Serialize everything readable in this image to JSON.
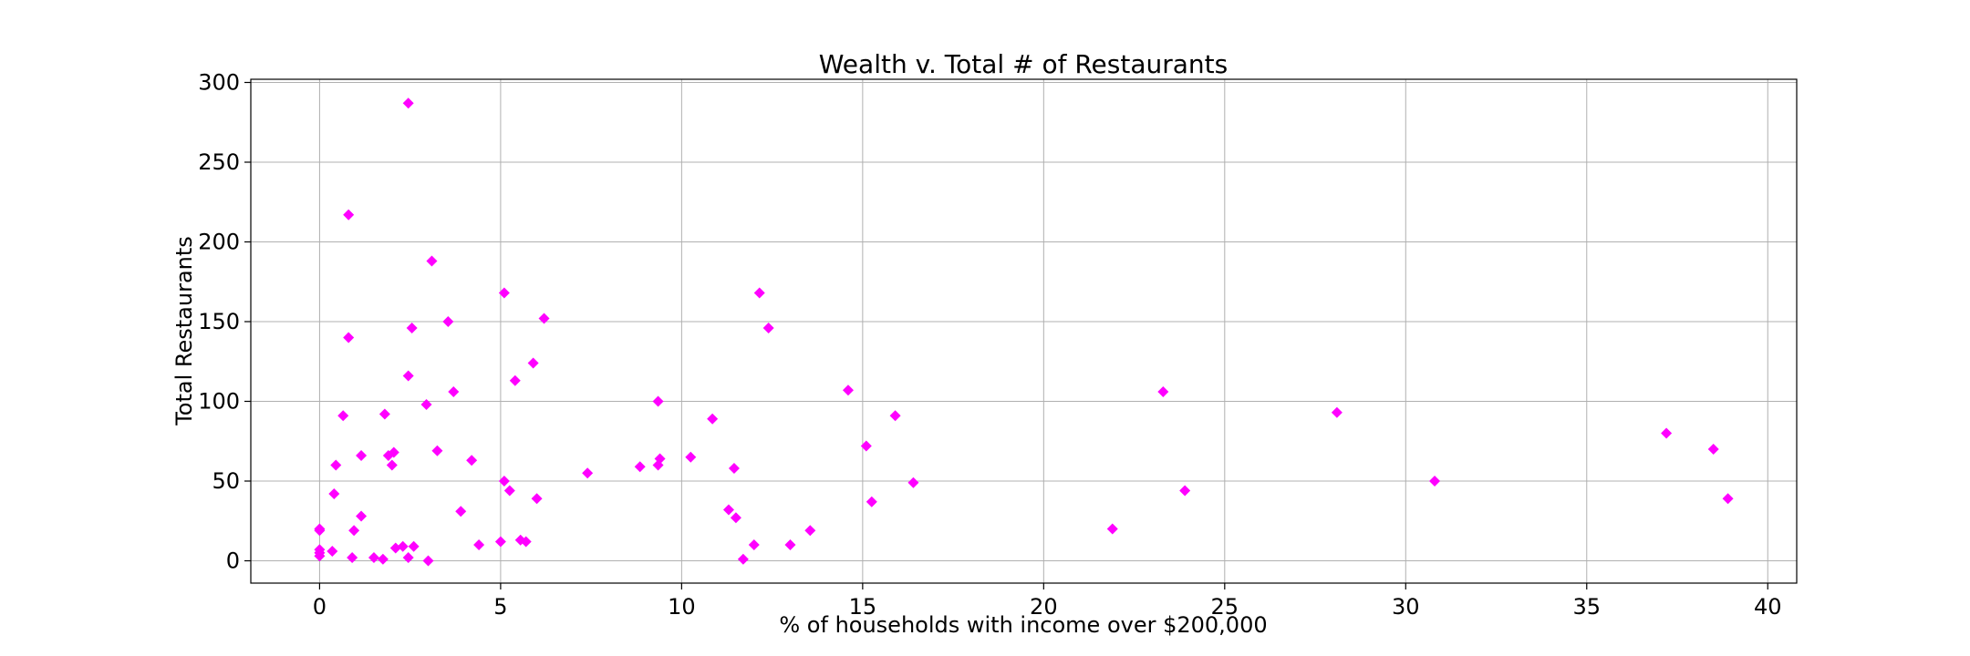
{
  "chart_data": {
    "type": "scatter",
    "title": "Wealth v. Total # of Restaurants",
    "xlabel": "% of households with income over $200,000",
    "ylabel": "Total Restaurants",
    "xlim": [
      -1.9,
      40.8
    ],
    "ylim": [
      -14,
      302
    ],
    "xticks": [
      0,
      5,
      10,
      15,
      20,
      25,
      30,
      35,
      40
    ],
    "yticks": [
      0,
      50,
      100,
      150,
      200,
      250,
      300
    ],
    "grid": true,
    "marker": "diamond",
    "color": "#ff00ff",
    "series": [
      {
        "points": [
          [
            0.0,
            20
          ],
          [
            0.0,
            19
          ],
          [
            0.0,
            7
          ],
          [
            0.0,
            5
          ],
          [
            0.0,
            3
          ],
          [
            0.35,
            6
          ],
          [
            0.4,
            42
          ],
          [
            0.45,
            60
          ],
          [
            0.65,
            91
          ],
          [
            0.8,
            217
          ],
          [
            0.8,
            140
          ],
          [
            0.9,
            2
          ],
          [
            0.95,
            19
          ],
          [
            1.15,
            66
          ],
          [
            1.15,
            28
          ],
          [
            1.5,
            2
          ],
          [
            1.75,
            1
          ],
          [
            1.8,
            92
          ],
          [
            1.9,
            66
          ],
          [
            2.0,
            60
          ],
          [
            2.05,
            68
          ],
          [
            2.1,
            8
          ],
          [
            2.3,
            9
          ],
          [
            2.45,
            287
          ],
          [
            2.45,
            116
          ],
          [
            2.45,
            2
          ],
          [
            2.55,
            146
          ],
          [
            2.6,
            9
          ],
          [
            2.95,
            98
          ],
          [
            3.0,
            0
          ],
          [
            3.1,
            188
          ],
          [
            3.25,
            69
          ],
          [
            3.55,
            150
          ],
          [
            3.7,
            106
          ],
          [
            3.9,
            31
          ],
          [
            4.2,
            63
          ],
          [
            4.4,
            10
          ],
          [
            5.0,
            12
          ],
          [
            5.1,
            168
          ],
          [
            5.1,
            50
          ],
          [
            5.25,
            44
          ],
          [
            5.4,
            113
          ],
          [
            5.55,
            13
          ],
          [
            5.7,
            12
          ],
          [
            5.9,
            124
          ],
          [
            6.0,
            39
          ],
          [
            6.2,
            152
          ],
          [
            7.4,
            55
          ],
          [
            8.85,
            59
          ],
          [
            9.35,
            100
          ],
          [
            9.35,
            60
          ],
          [
            9.4,
            64
          ],
          [
            10.25,
            65
          ],
          [
            10.85,
            89
          ],
          [
            11.3,
            32
          ],
          [
            11.45,
            58
          ],
          [
            11.5,
            27
          ],
          [
            11.7,
            1
          ],
          [
            12.0,
            10
          ],
          [
            12.15,
            168
          ],
          [
            12.4,
            146
          ],
          [
            13.0,
            10
          ],
          [
            13.55,
            19
          ],
          [
            14.6,
            107
          ],
          [
            15.1,
            72
          ],
          [
            15.25,
            37
          ],
          [
            15.9,
            91
          ],
          [
            16.4,
            49
          ],
          [
            21.9,
            20
          ],
          [
            23.3,
            106
          ],
          [
            23.9,
            44
          ],
          [
            28.1,
            93
          ],
          [
            30.8,
            50
          ],
          [
            37.2,
            80
          ],
          [
            38.5,
            70
          ],
          [
            38.9,
            39
          ]
        ]
      }
    ]
  }
}
